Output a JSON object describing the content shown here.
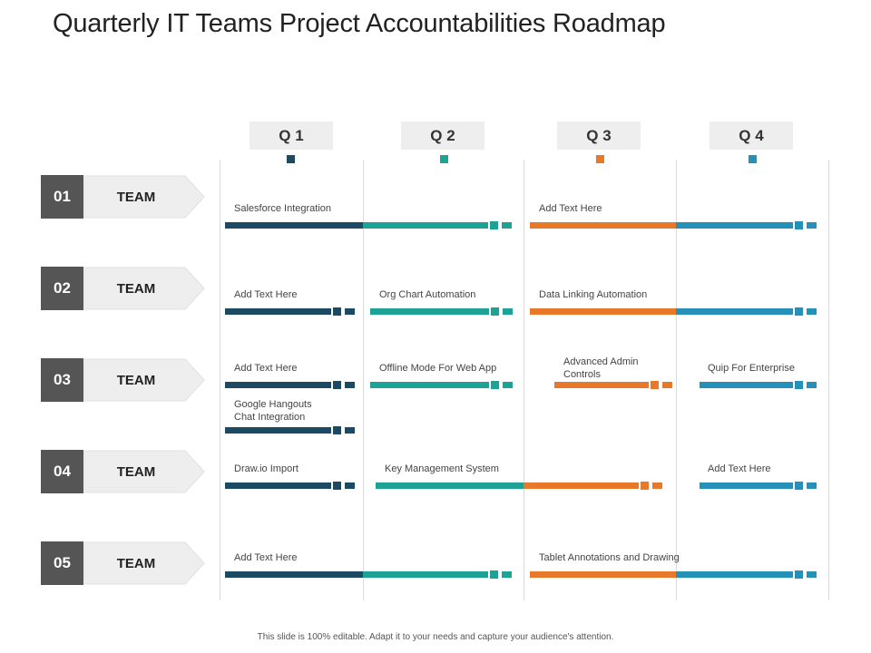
{
  "title": "Quarterly IT Teams Project Accountabilities Roadmap",
  "colors": {
    "q1": "#1d4a63",
    "q2": "#1ea296",
    "q3": "#e8782a",
    "q4": "#2591b8",
    "number_box": "#555555",
    "team_box": "#eeeeee"
  },
  "quarters": [
    {
      "label": "Q 1"
    },
    {
      "label": "Q 2"
    },
    {
      "label": "Q 3"
    },
    {
      "label": "Q 4"
    }
  ],
  "teams": [
    {
      "number": "01",
      "label": "TEAM"
    },
    {
      "number": "02",
      "label": "TEAM"
    },
    {
      "number": "03",
      "label": "TEAM"
    },
    {
      "number": "04",
      "label": "TEAM"
    },
    {
      "number": "05",
      "label": "TEAM"
    }
  ],
  "projects": [
    {
      "team": "01",
      "label": "Salesforce Integration",
      "start": "Q1",
      "end": "Q2"
    },
    {
      "team": "01",
      "label": "Add Text Here",
      "start": "Q3",
      "end": "Q4"
    },
    {
      "team": "02",
      "label": "Add Text Here",
      "start": "Q1",
      "end": "Q1"
    },
    {
      "team": "02",
      "label": "Org Chart Automation",
      "start": "Q2",
      "end": "Q2"
    },
    {
      "team": "02",
      "label": "Data Linking Automation",
      "start": "Q3",
      "end": "Q4"
    },
    {
      "team": "03",
      "label": "Add Text Here",
      "start": "Q1",
      "end": "Q1"
    },
    {
      "team": "03",
      "label": "Offline Mode For Web App",
      "start": "Q2",
      "end": "Q2"
    },
    {
      "team": "03",
      "label": "Advanced Admin Controls",
      "start": "Q3",
      "end": "Q3"
    },
    {
      "team": "03",
      "label": "Quip For Enterprise",
      "start": "Q4",
      "end": "Q4"
    },
    {
      "team": "03",
      "label": "Google Hangouts Chat Integration",
      "start": "Q1",
      "end": "Q1"
    },
    {
      "team": "04",
      "label": "Draw.io Import",
      "start": "Q1",
      "end": "Q1"
    },
    {
      "team": "04",
      "label": "Key Management System",
      "start": "Q2",
      "end": "Q3"
    },
    {
      "team": "04",
      "label": "Add Text Here",
      "start": "Q4",
      "end": "Q4"
    },
    {
      "team": "05",
      "label": "Add Text Here",
      "start": "Q1",
      "end": "Q2"
    },
    {
      "team": "05",
      "label": "Tablet Annotations and Drawing",
      "start": "Q3",
      "end": "Q4"
    }
  ],
  "footer": "This slide is 100% editable. Adapt it to your needs and capture your audience's attention."
}
